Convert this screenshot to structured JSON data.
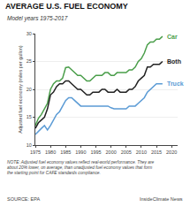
{
  "chart_data": {
    "type": "line",
    "title": "AVERAGE U.S. FUEL ECONOMY",
    "subtitle": "Model years 1975-2017",
    "ylabel": "Adjusted fuel economy (miles per gallon)",
    "note": "NOTE: Adjusted fuel economy values reflect real-world performance. They are\nabout 20% lower, on average, than unadjusted fuel economy values that form\nthe starting point for CAFE standards compliance.",
    "source": "SOURCE: EPA",
    "credit": "InsideClimate News",
    "x": [
      1975,
      1976,
      1977,
      1978,
      1979,
      1980,
      1981,
      1982,
      1983,
      1984,
      1985,
      1986,
      1987,
      1988,
      1989,
      1990,
      1991,
      1992,
      1993,
      1994,
      1995,
      1996,
      1997,
      1998,
      1999,
      2000,
      2001,
      2002,
      2003,
      2004,
      2005,
      2006,
      2007,
      2008,
      2009,
      2010,
      2011,
      2012,
      2013,
      2014,
      2015,
      2016,
      2017
    ],
    "series": [
      {
        "name": "Car",
        "color": "#4a9e4a",
        "values": [
          13.5,
          14.8,
          15.5,
          16.5,
          17.5,
          20.0,
          21.0,
          21.5,
          21.5,
          22.0,
          23.9,
          24.0,
          23.5,
          23.0,
          22.5,
          22.5,
          22.0,
          21.5,
          21.5,
          22.0,
          22.5,
          22.5,
          22.5,
          23.0,
          23.0,
          22.5,
          22.5,
          23.0,
          23.0,
          23.0,
          23.0,
          23.5,
          23.5,
          24.0,
          25.0,
          25.5,
          26.5,
          28.0,
          28.5,
          28.5,
          29.0,
          29.0,
          29.5
        ]
      },
      {
        "name": "Both",
        "color": "#222222",
        "values": [
          13.0,
          14.0,
          14.5,
          15.0,
          16.5,
          19.0,
          19.5,
          20.5,
          21.0,
          21.0,
          21.5,
          21.5,
          21.0,
          20.5,
          20.0,
          20.0,
          19.5,
          19.0,
          19.0,
          19.5,
          19.5,
          19.5,
          20.0,
          20.0,
          19.5,
          19.5,
          19.5,
          20.0,
          19.5,
          19.5,
          19.5,
          20.0,
          20.0,
          20.5,
          21.5,
          22.0,
          22.5,
          24.0,
          24.0,
          24.5,
          24.5,
          24.5,
          25.0
        ]
      },
      {
        "name": "Truck",
        "color": "#5b9bd5",
        "values": [
          11.9,
          12.5,
          13.0,
          13.5,
          12.7,
          13.5,
          14.5,
          15.5,
          16.0,
          17.0,
          18.0,
          18.5,
          18.5,
          18.0,
          17.5,
          17.0,
          17.0,
          17.0,
          17.0,
          17.0,
          17.0,
          17.0,
          17.0,
          17.0,
          17.0,
          16.7,
          16.5,
          16.5,
          16.5,
          16.5,
          16.5,
          17.0,
          17.0,
          17.0,
          17.5,
          18.0,
          18.5,
          19.5,
          20.0,
          20.5,
          21.0,
          21.0,
          21.0
        ]
      }
    ],
    "xlim": [
      1975,
      2022
    ],
    "ylim": [
      10,
      30
    ],
    "xticks": [
      1975,
      1980,
      1985,
      1990,
      1995,
      2000,
      2005,
      2010,
      2015,
      2020
    ],
    "yticks": [
      10,
      15,
      20,
      25,
      30
    ],
    "grid": "y"
  }
}
